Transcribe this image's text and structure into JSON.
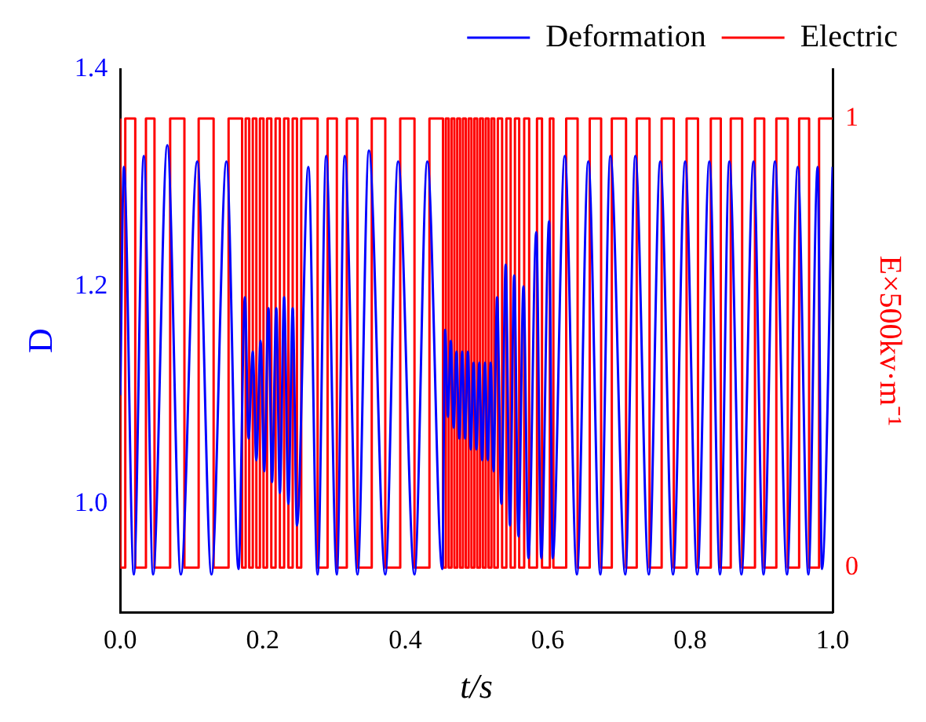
{
  "chart_data": {
    "type": "line",
    "xlabel": "t/s",
    "ylabel": "D",
    "y2label": "E×500kv·m⁻¹",
    "xlim": [
      0,
      1
    ],
    "xticks": [
      {
        "value": 0,
        "label": "0.0"
      },
      {
        "value": 0.2,
        "label": "0.2"
      },
      {
        "value": 0.4,
        "label": "0.4"
      },
      {
        "value": 0.6,
        "label": "0.6"
      },
      {
        "value": 0.8,
        "label": "0.8"
      },
      {
        "value": 1,
        "label": "1.0"
      }
    ],
    "ylim": [
      0.9,
      1.4
    ],
    "yticks": [
      {
        "value": 1,
        "label": "1.0"
      },
      1.2,
      1.4
    ],
    "y2lim": [
      -0.1,
      1.11
    ],
    "y2ticks": [
      0,
      1
    ],
    "legend": "top right",
    "grid": false,
    "marker": "none",
    "line_style": "solid",
    "series": [
      {
        "name": "Deformation",
        "color": "#0000ff",
        "type": "line",
        "x": [
          0,
          0.005,
          0.019,
          0.033,
          0.046,
          0.066,
          0.085,
          0.108,
          0.128,
          0.149,
          0.166,
          0.175,
          0.18,
          0.186,
          0.191,
          0.197,
          0.202,
          0.208,
          0.213,
          0.219,
          0.224,
          0.23,
          0.236,
          0.242,
          0.248,
          0.264,
          0.277,
          0.289,
          0.304,
          0.315,
          0.333,
          0.349,
          0.372,
          0.39,
          0.413,
          0.431,
          0.452,
          0.456,
          0.46,
          0.464,
          0.468,
          0.472,
          0.476,
          0.48,
          0.484,
          0.488,
          0.492,
          0.496,
          0.5,
          0.504,
          0.508,
          0.512,
          0.516,
          0.52,
          0.524,
          0.529,
          0.535,
          0.541,
          0.547,
          0.553,
          0.559,
          0.566,
          0.573,
          0.584,
          0.591,
          0.602,
          0.607,
          0.624,
          0.641,
          0.657,
          0.674,
          0.688,
          0.709,
          0.723,
          0.742,
          0.758,
          0.776,
          0.793,
          0.81,
          0.827,
          0.842,
          0.855,
          0.872,
          0.889,
          0.903,
          0.919,
          0.936,
          0.951,
          0.966,
          0.979,
          0.985,
          1
        ],
        "values": [
          1.1,
          1.31,
          0.935,
          1.32,
          0.935,
          1.33,
          0.935,
          1.315,
          0.935,
          1.315,
          0.94,
          1.19,
          1.06,
          1.14,
          1.04,
          1.15,
          1.03,
          1.18,
          1.02,
          1.18,
          1.01,
          1.19,
          1.0,
          1.18,
          0.98,
          1.31,
          0.935,
          1.32,
          0.935,
          1.32,
          0.935,
          1.325,
          0.935,
          1.315,
          0.935,
          1.315,
          0.94,
          1.16,
          1.08,
          1.15,
          1.07,
          1.14,
          1.06,
          1.14,
          1.06,
          1.14,
          1.05,
          1.13,
          1.05,
          1.13,
          1.04,
          1.13,
          1.04,
          1.13,
          1.03,
          1.19,
          1.0,
          1.22,
          0.98,
          1.21,
          0.97,
          1.2,
          0.95,
          1.25,
          0.95,
          1.26,
          0.95,
          1.32,
          0.935,
          1.315,
          0.935,
          1.32,
          0.935,
          1.32,
          0.935,
          1.315,
          0.935,
          1.315,
          0.935,
          1.315,
          0.935,
          1.315,
          0.935,
          1.315,
          0.935,
          1.315,
          0.935,
          1.31,
          0.935,
          1.31,
          0.94,
          1.31
        ]
      },
      {
        "name": "Electric",
        "color": "#ff0000",
        "type": "step",
        "axis": "y2",
        "x": [
          0,
          0.007,
          0.021,
          0.036,
          0.048,
          0.07,
          0.09,
          0.11,
          0.131,
          0.152,
          0.171,
          0.176,
          0.181,
          0.186,
          0.191,
          0.196,
          0.201,
          0.206,
          0.212,
          0.218,
          0.224,
          0.23,
          0.236,
          0.242,
          0.248,
          0.254,
          0.277,
          0.291,
          0.304,
          0.318,
          0.333,
          0.353,
          0.372,
          0.393,
          0.413,
          0.434,
          0.453,
          0.457,
          0.461,
          0.465,
          0.469,
          0.473,
          0.477,
          0.481,
          0.485,
          0.489,
          0.493,
          0.497,
          0.501,
          0.505,
          0.509,
          0.513,
          0.517,
          0.521,
          0.525,
          0.53,
          0.536,
          0.542,
          0.548,
          0.554,
          0.56,
          0.567,
          0.574,
          0.585,
          0.592,
          0.603,
          0.608,
          0.626,
          0.642,
          0.659,
          0.675,
          0.69,
          0.71,
          0.725,
          0.743,
          0.76,
          0.777,
          0.795,
          0.811,
          0.829,
          0.843,
          0.857,
          0.873,
          0.891,
          0.904,
          0.921,
          0.937,
          0.953,
          0.967,
          0.981,
          0.986,
          1
        ],
        "values": [
          1,
          0,
          1,
          0,
          1,
          0,
          1,
          0,
          1,
          0,
          1,
          0,
          1,
          0,
          1,
          0,
          1,
          0,
          1,
          0,
          1,
          0,
          1,
          0,
          1,
          0,
          1,
          0,
          1,
          0,
          1,
          0,
          1,
          0,
          1,
          0,
          1,
          0,
          1,
          0,
          1,
          0,
          1,
          0,
          1,
          0,
          1,
          0,
          1,
          0,
          1,
          0,
          1,
          0,
          1,
          0,
          1,
          0,
          1,
          0,
          1,
          0,
          1,
          0,
          1,
          0,
          1,
          0,
          1,
          0,
          1,
          0,
          1,
          0,
          1,
          0,
          1,
          0,
          1,
          0,
          1,
          0,
          1,
          0,
          1,
          0,
          1,
          0,
          1,
          0,
          1,
          1
        ]
      }
    ]
  }
}
